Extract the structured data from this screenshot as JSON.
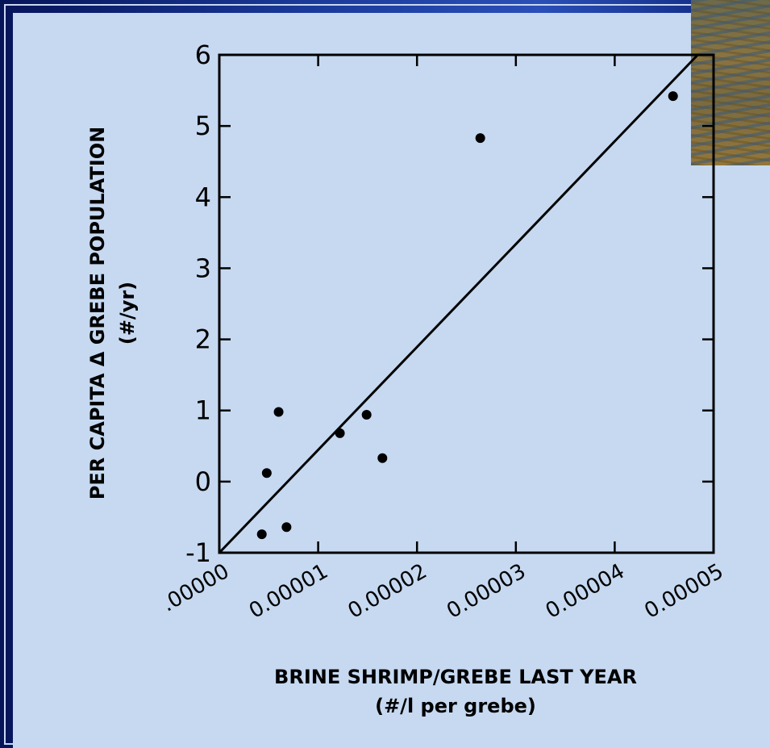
{
  "chart_data": {
    "type": "scatter",
    "xlabel": "BRINE SHRIMP/GREBE LAST YEAR",
    "xlabel_units": "(#/l per grebe)",
    "ylabel": "PER CAPITA Δ GREBE POPULATION",
    "ylabel_units": "(#/yr)",
    "xlim": [
      0,
      5e-05
    ],
    "ylim": [
      -1,
      6
    ],
    "xticks": [
      0,
      1e-05,
      2e-05,
      3e-05,
      4e-05,
      5e-05
    ],
    "xtick_labels": [
      ".00000",
      "0.00001",
      "0.00002",
      "0.00003",
      "0.00004",
      "0.00005"
    ],
    "yticks": [
      -1,
      0,
      1,
      2,
      3,
      4,
      5,
      6
    ],
    "ytick_labels": [
      "-1",
      "0",
      "1",
      "2",
      "3",
      "4",
      "5",
      "6"
    ],
    "grid": false,
    "points": [
      {
        "x": 4.3e-06,
        "y": -0.74
      },
      {
        "x": 4.8e-06,
        "y": 0.12
      },
      {
        "x": 6e-06,
        "y": 0.98
      },
      {
        "x": 6.8e-06,
        "y": -0.64
      },
      {
        "x": 1.22e-05,
        "y": 0.68
      },
      {
        "x": 1.49e-05,
        "y": 0.94
      },
      {
        "x": 1.65e-05,
        "y": 0.33
      },
      {
        "x": 2.64e-05,
        "y": 4.83
      },
      {
        "x": 4.59e-05,
        "y": 5.42
      }
    ],
    "fit_line": {
      "x": [
        0,
        4.84e-05
      ],
      "y": [
        -1,
        6
      ]
    }
  }
}
